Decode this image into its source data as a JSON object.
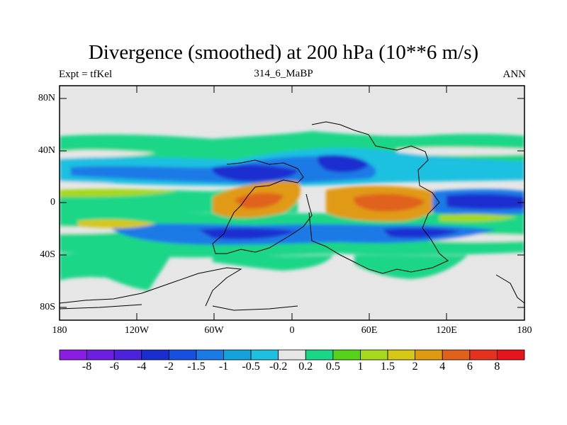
{
  "title": "Divergence (smoothed) at 200 hPa (10**6 m/s)",
  "subtitle_left": "Expt = tfKel",
  "subtitle_center": "314_6_MaBP",
  "subtitle_right": "ANN",
  "y_ticks": [
    "80N",
    "40N",
    "0",
    "40S",
    "80S"
  ],
  "x_ticks": [
    "180",
    "120W",
    "60W",
    "0",
    "60E",
    "120E",
    "180"
  ],
  "colorbar": {
    "labels": [
      "-8",
      "-6",
      "-4",
      "-2",
      "-1.5",
      "-1",
      "-0.5",
      "-0.2",
      "0.2",
      "0.5",
      "1",
      "1.5",
      "2",
      "4",
      "6",
      "8"
    ],
    "colors": [
      "#8a1ce4",
      "#6d1ee0",
      "#4d22dc",
      "#1a2ed0",
      "#1650e0",
      "#1a7ae6",
      "#14a2dc",
      "#1ec0e0",
      "#e6e6e6",
      "#1ad688",
      "#56d21a",
      "#a6d81c",
      "#d6c814",
      "#e09a12",
      "#e0621a",
      "#e6321c",
      "#e6141c"
    ]
  },
  "map": {
    "background": "#e6e6e6",
    "type": "filled contour map"
  }
}
